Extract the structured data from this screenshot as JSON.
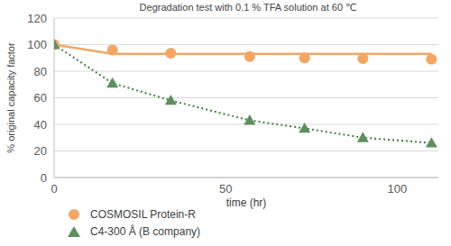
{
  "chart_data": {
    "type": "scatter",
    "title": "Degradation test with 0.1 % TFA solution at 60 ℃",
    "x_label": "time (hr)",
    "y_label": "% original capacity factor",
    "xlim": [
      0,
      112
    ],
    "xticks": [
      0,
      50,
      100
    ],
    "ylim": [
      0,
      120
    ],
    "yticks": [
      0,
      20,
      40,
      60,
      80,
      100,
      120
    ],
    "grid": true,
    "legend": "bottom-left",
    "series": [
      {
        "name": "COSMOSIL Protein-R",
        "color": "#f5a663",
        "marker": "circle",
        "line_style": "solid",
        "x": [
          0,
          17,
          34,
          57,
          73,
          90,
          110
        ],
        "values": [
          100,
          96,
          93.5,
          91,
          90,
          89.5,
          89
        ],
        "trend_x": [
          0,
          17,
          110
        ],
        "trend_values": [
          100,
          93,
          93
        ]
      },
      {
        "name": "C4-300 Å (B company)",
        "color": "#5f8f5f",
        "marker": "triangle",
        "line_style": "dotted",
        "x": [
          0,
          17,
          34,
          57,
          73,
          90,
          110
        ],
        "values": [
          100,
          71,
          58,
          43,
          37,
          30,
          26
        ]
      }
    ]
  }
}
